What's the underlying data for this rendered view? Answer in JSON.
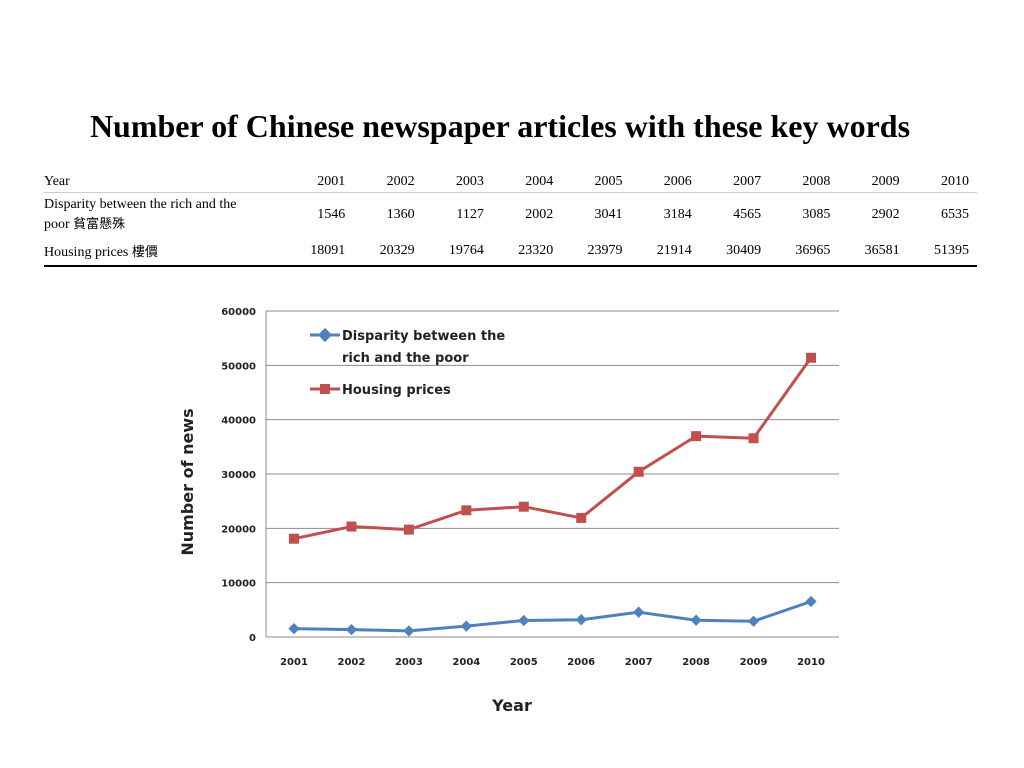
{
  "title": "Number of Chinese newspaper articles with these key words",
  "table": {
    "header_label": "Year",
    "years": [
      "2001",
      "2002",
      "2003",
      "2004",
      "2005",
      "2006",
      "2007",
      "2008",
      "2009",
      "2010"
    ],
    "rows": [
      {
        "label_line1": "Disparity between the rich and the",
        "label_line2": "poor",
        "label_cjk": "貧富懸殊",
        "values": [
          "1546",
          "1360",
          "1127",
          "2002",
          "3041",
          "3184",
          "4565",
          "3085",
          "2902",
          "6535"
        ]
      },
      {
        "label_line1": "Housing prices",
        "label_cjk": "樓價",
        "values": [
          "18091",
          "20329",
          "19764",
          "23320",
          "23979",
          "21914",
          "30409",
          "36965",
          "36581",
          "51395"
        ]
      }
    ]
  },
  "chart_data": {
    "type": "line",
    "x": [
      2001,
      2002,
      2003,
      2004,
      2005,
      2006,
      2007,
      2008,
      2009,
      2010
    ],
    "xlabel": "Year",
    "ylabel": "Number of news",
    "ylim": [
      0,
      60000
    ],
    "yticks": [
      0,
      10000,
      20000,
      30000,
      40000,
      50000,
      60000
    ],
    "grid": true,
    "legend_position": "top-left",
    "series": [
      {
        "name_line1": "Disparity between the",
        "name_line2": "rich and the poor",
        "color": "#4f81bd",
        "marker": "diamond",
        "values": [
          1546,
          1360,
          1127,
          2002,
          3041,
          3184,
          4565,
          3085,
          2902,
          6535
        ]
      },
      {
        "name_line1": "Housing prices",
        "color": "#c0504d",
        "marker": "square",
        "values": [
          18091,
          20329,
          19764,
          23320,
          23979,
          21914,
          30409,
          36965,
          36581,
          51395
        ]
      }
    ]
  }
}
